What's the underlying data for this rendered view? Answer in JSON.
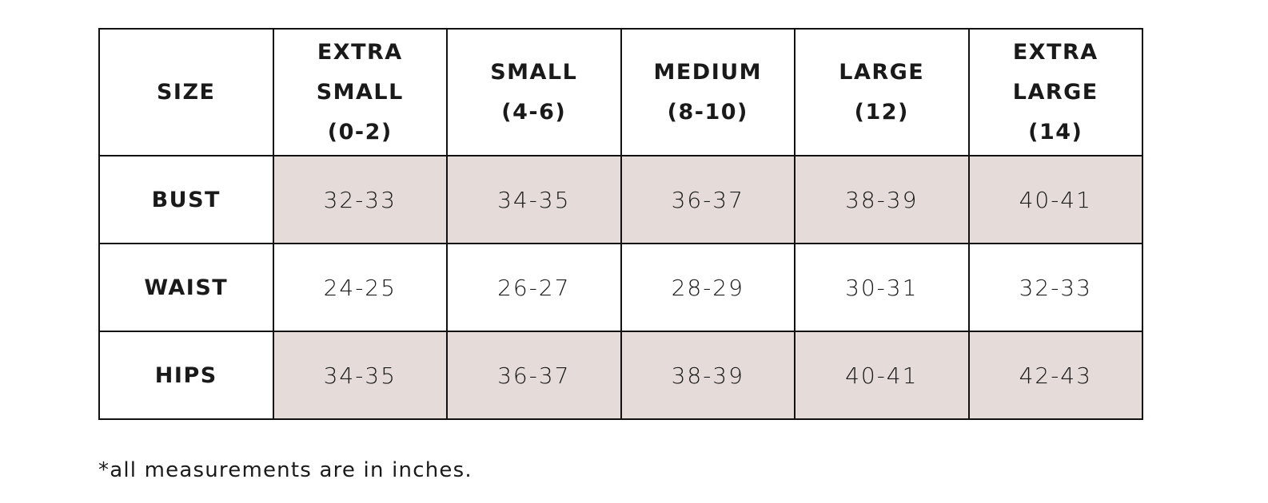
{
  "table": {
    "corner": "SIZE",
    "columns": [
      {
        "name": "EXTRA SMALL",
        "range": "(0-2)"
      },
      {
        "name": "SMALL",
        "range": "(4-6)"
      },
      {
        "name": "MEDIUM",
        "range": "(8-10)"
      },
      {
        "name": "LARGE",
        "range": "(12)"
      },
      {
        "name": "EXTRA LARGE",
        "range": "(14)"
      }
    ],
    "rows": [
      {
        "label": "BUST",
        "values": [
          "32-33",
          "34-35",
          "36-37",
          "38-39",
          "40-41"
        ]
      },
      {
        "label": "WAIST",
        "values": [
          "24-25",
          "26-27",
          "28-29",
          "30-31",
          "32-33"
        ]
      },
      {
        "label": "HIPS",
        "values": [
          "34-35",
          "36-37",
          "38-39",
          "40-41",
          "42-43"
        ]
      }
    ]
  },
  "footnote": "*all measurements are in inches."
}
